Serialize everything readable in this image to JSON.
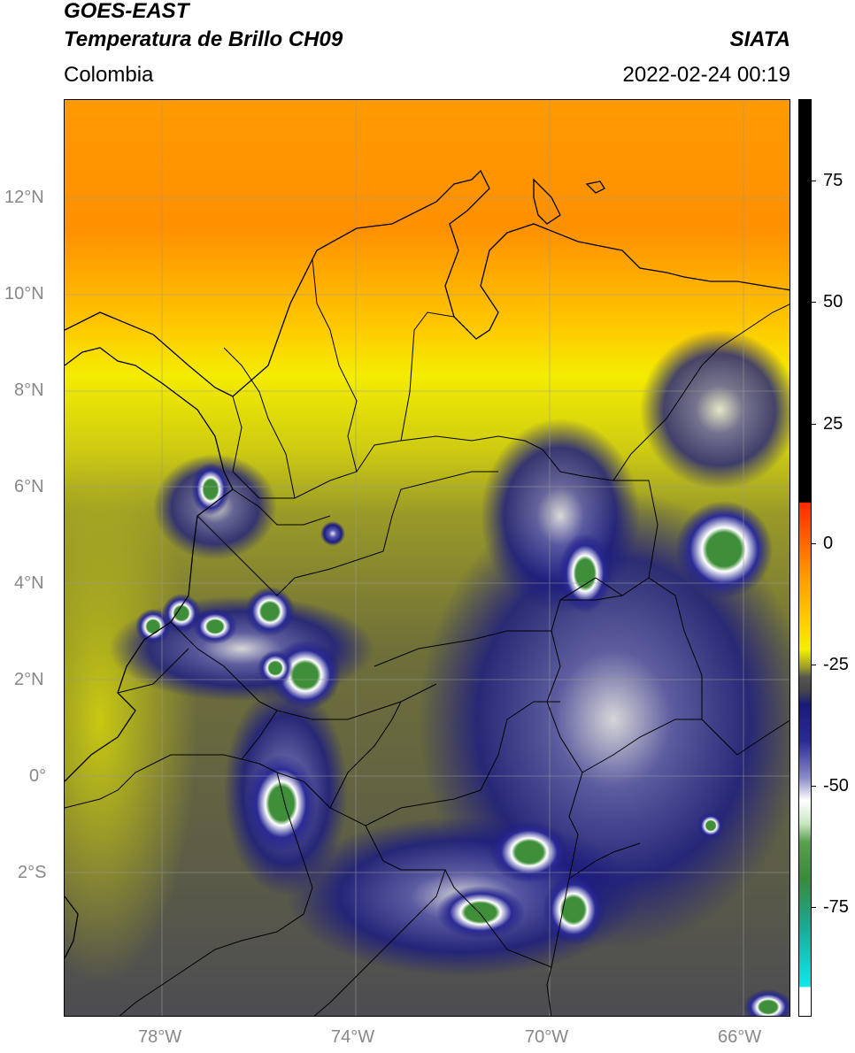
{
  "header": {
    "satellite": "GOES-EAST",
    "product": "Temperatura de Brillo CH09",
    "institution": "SIATA",
    "region": "Colombia",
    "datetime": "2022-02-24 00:19"
  },
  "map": {
    "lat_labels": [
      "12°N",
      "10°N",
      "8°N",
      "6°N",
      "4°N",
      "2°N",
      "0°",
      "2°S"
    ],
    "lon_labels": [
      "78°W",
      "74°W",
      "70°W",
      "66°W"
    ],
    "extent": {
      "lon_min": -80,
      "lon_max": -65,
      "lat_min": -5,
      "lat_max": 14
    },
    "grid": true
  },
  "colorbar": {
    "ticks": [
      "75",
      "50",
      "25",
      "0",
      "-25",
      "-50",
      "-75"
    ],
    "range": [
      -95,
      90
    ],
    "unit_shown": ""
  }
}
